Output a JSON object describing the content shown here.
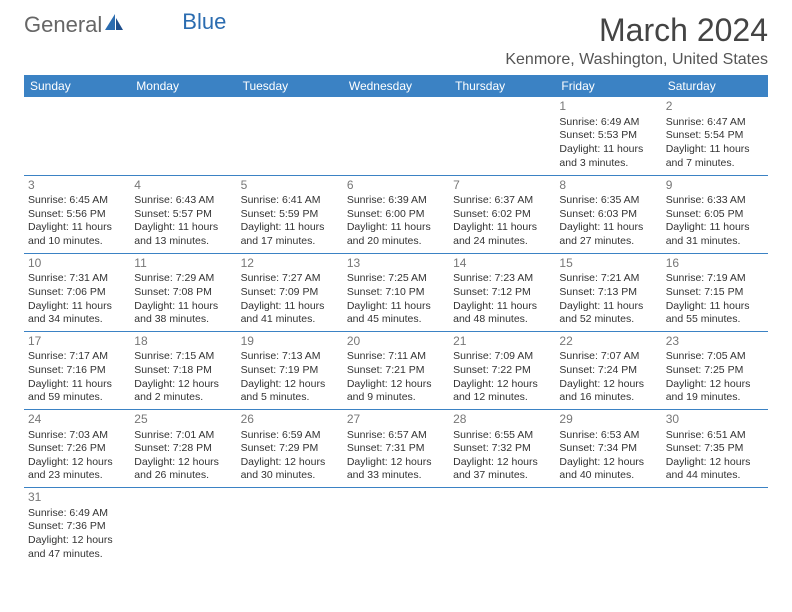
{
  "logo": {
    "general": "General",
    "blue": "Blue"
  },
  "title": "March 2024",
  "location": "Kenmore, Washington, United States",
  "colors": {
    "header_bg": "#3b82c4",
    "header_fg": "#ffffff",
    "border": "#3b82c4",
    "day_num": "#777777",
    "text": "#333333",
    "logo_blue": "#2b6cb0"
  },
  "weekdays": [
    "Sunday",
    "Monday",
    "Tuesday",
    "Wednesday",
    "Thursday",
    "Friday",
    "Saturday"
  ],
  "weeks": [
    [
      null,
      null,
      null,
      null,
      null,
      {
        "day": "1",
        "sunrise": "Sunrise: 6:49 AM",
        "sunset": "Sunset: 5:53 PM",
        "daylight1": "Daylight: 11 hours",
        "daylight2": "and 3 minutes."
      },
      {
        "day": "2",
        "sunrise": "Sunrise: 6:47 AM",
        "sunset": "Sunset: 5:54 PM",
        "daylight1": "Daylight: 11 hours",
        "daylight2": "and 7 minutes."
      }
    ],
    [
      {
        "day": "3",
        "sunrise": "Sunrise: 6:45 AM",
        "sunset": "Sunset: 5:56 PM",
        "daylight1": "Daylight: 11 hours",
        "daylight2": "and 10 minutes."
      },
      {
        "day": "4",
        "sunrise": "Sunrise: 6:43 AM",
        "sunset": "Sunset: 5:57 PM",
        "daylight1": "Daylight: 11 hours",
        "daylight2": "and 13 minutes."
      },
      {
        "day": "5",
        "sunrise": "Sunrise: 6:41 AM",
        "sunset": "Sunset: 5:59 PM",
        "daylight1": "Daylight: 11 hours",
        "daylight2": "and 17 minutes."
      },
      {
        "day": "6",
        "sunrise": "Sunrise: 6:39 AM",
        "sunset": "Sunset: 6:00 PM",
        "daylight1": "Daylight: 11 hours",
        "daylight2": "and 20 minutes."
      },
      {
        "day": "7",
        "sunrise": "Sunrise: 6:37 AM",
        "sunset": "Sunset: 6:02 PM",
        "daylight1": "Daylight: 11 hours",
        "daylight2": "and 24 minutes."
      },
      {
        "day": "8",
        "sunrise": "Sunrise: 6:35 AM",
        "sunset": "Sunset: 6:03 PM",
        "daylight1": "Daylight: 11 hours",
        "daylight2": "and 27 minutes."
      },
      {
        "day": "9",
        "sunrise": "Sunrise: 6:33 AM",
        "sunset": "Sunset: 6:05 PM",
        "daylight1": "Daylight: 11 hours",
        "daylight2": "and 31 minutes."
      }
    ],
    [
      {
        "day": "10",
        "sunrise": "Sunrise: 7:31 AM",
        "sunset": "Sunset: 7:06 PM",
        "daylight1": "Daylight: 11 hours",
        "daylight2": "and 34 minutes."
      },
      {
        "day": "11",
        "sunrise": "Sunrise: 7:29 AM",
        "sunset": "Sunset: 7:08 PM",
        "daylight1": "Daylight: 11 hours",
        "daylight2": "and 38 minutes."
      },
      {
        "day": "12",
        "sunrise": "Sunrise: 7:27 AM",
        "sunset": "Sunset: 7:09 PM",
        "daylight1": "Daylight: 11 hours",
        "daylight2": "and 41 minutes."
      },
      {
        "day": "13",
        "sunrise": "Sunrise: 7:25 AM",
        "sunset": "Sunset: 7:10 PM",
        "daylight1": "Daylight: 11 hours",
        "daylight2": "and 45 minutes."
      },
      {
        "day": "14",
        "sunrise": "Sunrise: 7:23 AM",
        "sunset": "Sunset: 7:12 PM",
        "daylight1": "Daylight: 11 hours",
        "daylight2": "and 48 minutes."
      },
      {
        "day": "15",
        "sunrise": "Sunrise: 7:21 AM",
        "sunset": "Sunset: 7:13 PM",
        "daylight1": "Daylight: 11 hours",
        "daylight2": "and 52 minutes."
      },
      {
        "day": "16",
        "sunrise": "Sunrise: 7:19 AM",
        "sunset": "Sunset: 7:15 PM",
        "daylight1": "Daylight: 11 hours",
        "daylight2": "and 55 minutes."
      }
    ],
    [
      {
        "day": "17",
        "sunrise": "Sunrise: 7:17 AM",
        "sunset": "Sunset: 7:16 PM",
        "daylight1": "Daylight: 11 hours",
        "daylight2": "and 59 minutes."
      },
      {
        "day": "18",
        "sunrise": "Sunrise: 7:15 AM",
        "sunset": "Sunset: 7:18 PM",
        "daylight1": "Daylight: 12 hours",
        "daylight2": "and 2 minutes."
      },
      {
        "day": "19",
        "sunrise": "Sunrise: 7:13 AM",
        "sunset": "Sunset: 7:19 PM",
        "daylight1": "Daylight: 12 hours",
        "daylight2": "and 5 minutes."
      },
      {
        "day": "20",
        "sunrise": "Sunrise: 7:11 AM",
        "sunset": "Sunset: 7:21 PM",
        "daylight1": "Daylight: 12 hours",
        "daylight2": "and 9 minutes."
      },
      {
        "day": "21",
        "sunrise": "Sunrise: 7:09 AM",
        "sunset": "Sunset: 7:22 PM",
        "daylight1": "Daylight: 12 hours",
        "daylight2": "and 12 minutes."
      },
      {
        "day": "22",
        "sunrise": "Sunrise: 7:07 AM",
        "sunset": "Sunset: 7:24 PM",
        "daylight1": "Daylight: 12 hours",
        "daylight2": "and 16 minutes."
      },
      {
        "day": "23",
        "sunrise": "Sunrise: 7:05 AM",
        "sunset": "Sunset: 7:25 PM",
        "daylight1": "Daylight: 12 hours",
        "daylight2": "and 19 minutes."
      }
    ],
    [
      {
        "day": "24",
        "sunrise": "Sunrise: 7:03 AM",
        "sunset": "Sunset: 7:26 PM",
        "daylight1": "Daylight: 12 hours",
        "daylight2": "and 23 minutes."
      },
      {
        "day": "25",
        "sunrise": "Sunrise: 7:01 AM",
        "sunset": "Sunset: 7:28 PM",
        "daylight1": "Daylight: 12 hours",
        "daylight2": "and 26 minutes."
      },
      {
        "day": "26",
        "sunrise": "Sunrise: 6:59 AM",
        "sunset": "Sunset: 7:29 PM",
        "daylight1": "Daylight: 12 hours",
        "daylight2": "and 30 minutes."
      },
      {
        "day": "27",
        "sunrise": "Sunrise: 6:57 AM",
        "sunset": "Sunset: 7:31 PM",
        "daylight1": "Daylight: 12 hours",
        "daylight2": "and 33 minutes."
      },
      {
        "day": "28",
        "sunrise": "Sunrise: 6:55 AM",
        "sunset": "Sunset: 7:32 PM",
        "daylight1": "Daylight: 12 hours",
        "daylight2": "and 37 minutes."
      },
      {
        "day": "29",
        "sunrise": "Sunrise: 6:53 AM",
        "sunset": "Sunset: 7:34 PM",
        "daylight1": "Daylight: 12 hours",
        "daylight2": "and 40 minutes."
      },
      {
        "day": "30",
        "sunrise": "Sunrise: 6:51 AM",
        "sunset": "Sunset: 7:35 PM",
        "daylight1": "Daylight: 12 hours",
        "daylight2": "and 44 minutes."
      }
    ],
    [
      {
        "day": "31",
        "sunrise": "Sunrise: 6:49 AM",
        "sunset": "Sunset: 7:36 PM",
        "daylight1": "Daylight: 12 hours",
        "daylight2": "and 47 minutes."
      },
      null,
      null,
      null,
      null,
      null,
      null
    ]
  ]
}
